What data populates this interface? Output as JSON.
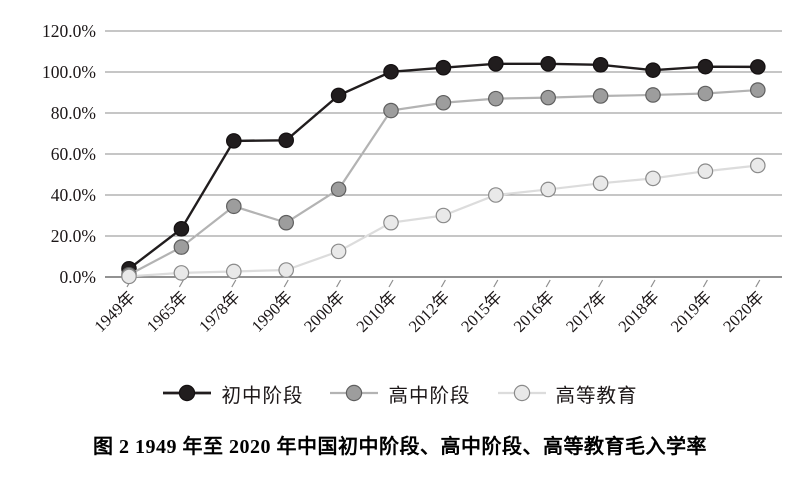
{
  "figure": {
    "caption": "图 2  1949 年至 2020 年中国初中阶段、高中阶段、高等教育毛入学率"
  },
  "chart_data": {
    "type": "line",
    "title": "",
    "xlabel": "",
    "ylabel": "",
    "categories": [
      "1949年",
      "1965年",
      "1978年",
      "1990年",
      "2000年",
      "2010年",
      "2012年",
      "2015年",
      "2016年",
      "2017年",
      "2018年",
      "2019年",
      "2020年"
    ],
    "series": [
      {
        "name": "初中阶段",
        "values": [
          4.0,
          23.5,
          66.4,
          66.7,
          88.6,
          100.1,
          102.1,
          104.0,
          104.0,
          103.5,
          100.9,
          102.6,
          102.5
        ],
        "line_color": "#211d1e",
        "marker_fill": "#211d1e",
        "marker_stroke": "#141011",
        "line_width": 2.4,
        "legend_line_width": 2.8
      },
      {
        "name": "高中阶段",
        "values": [
          1.1,
          14.6,
          34.5,
          26.5,
          42.8,
          81.2,
          85.0,
          87.0,
          87.5,
          88.3,
          88.8,
          89.5,
          91.2
        ],
        "line_color": "#b3b3b3",
        "marker_fill": "#9d9d9d",
        "marker_stroke": "#5f5f5f",
        "line_width": 2.2,
        "legend_line_width": 2.2
      },
      {
        "name": "高等教育",
        "values": [
          0.3,
          2.0,
          2.7,
          3.4,
          12.5,
          26.5,
          30.0,
          40.0,
          42.7,
          45.7,
          48.1,
          51.6,
          54.4
        ],
        "line_color": "#dcdcdc",
        "marker_fill": "#e9e9e9",
        "marker_stroke": "#8a8a8a",
        "line_width": 2.2,
        "legend_line_width": 2.2
      }
    ],
    "y_ticks": [
      {
        "value": 0,
        "label": "0.0%"
      },
      {
        "value": 20,
        "label": "20.0%"
      },
      {
        "value": 40,
        "label": "40.0%"
      },
      {
        "value": 60,
        "label": "60.0%"
      },
      {
        "value": 80,
        "label": "80.0%"
      },
      {
        "value": 100,
        "label": "100.0%"
      },
      {
        "value": 120,
        "label": "120.0%"
      }
    ],
    "ylim": [
      0,
      120
    ],
    "grid": true,
    "gridline_color": "#8e8e8e",
    "baseline_color": "#6f6f6f",
    "axis_text_color": "#1c1718",
    "legend_position": "bottom"
  }
}
